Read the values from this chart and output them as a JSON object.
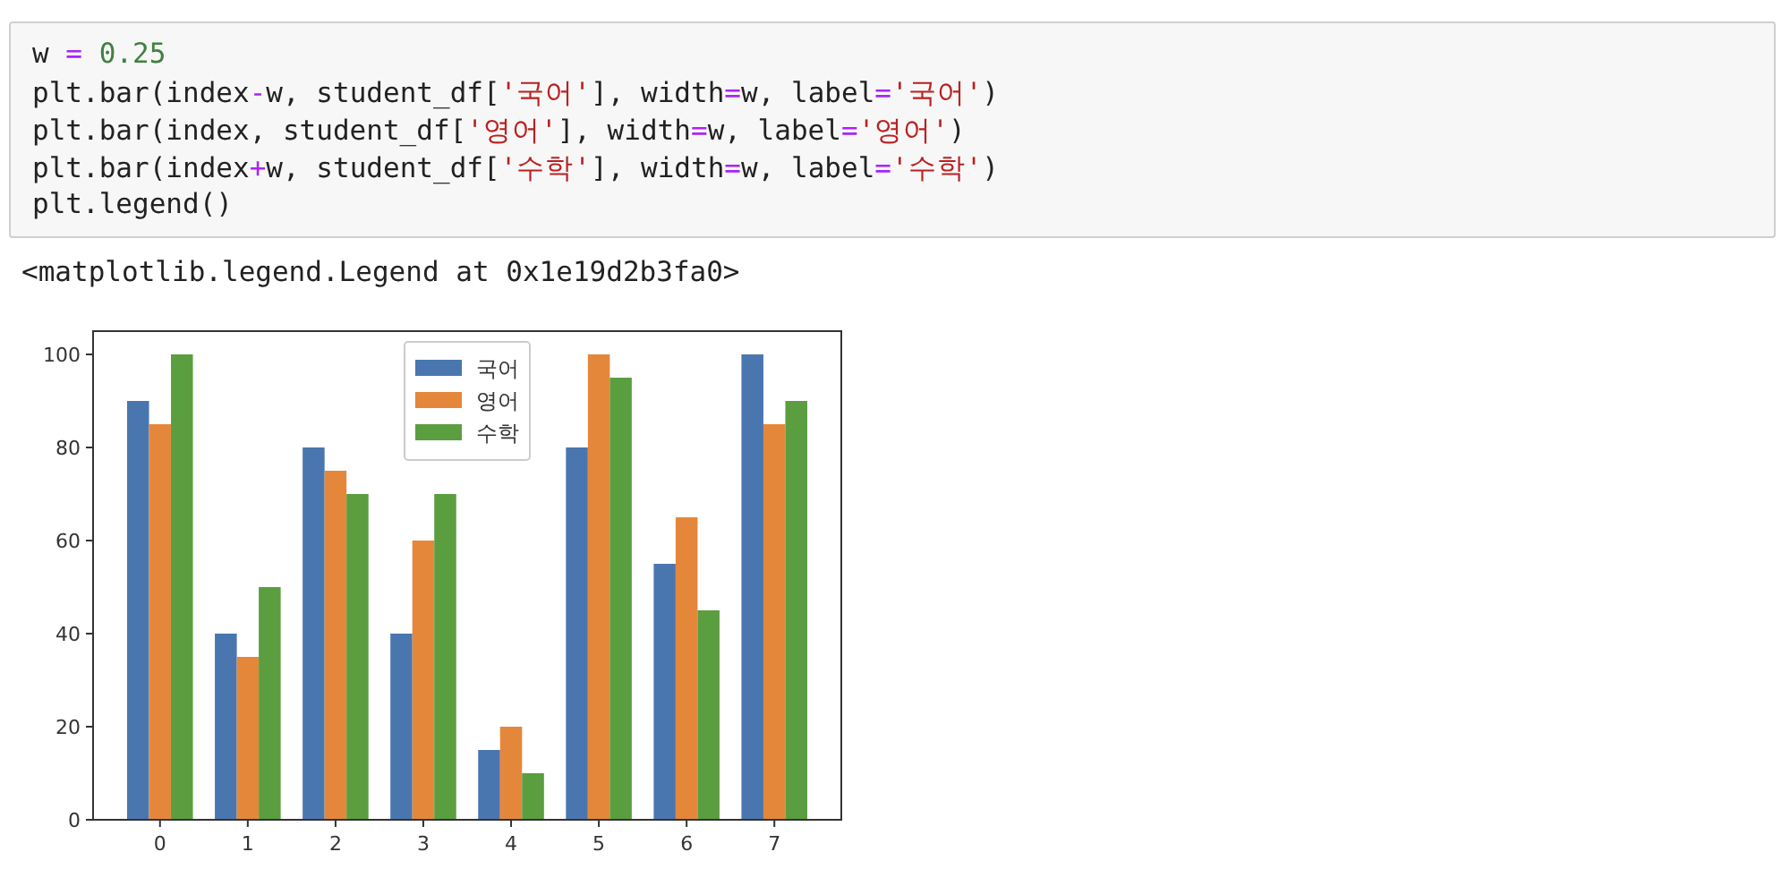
{
  "chart_data": {
    "type": "bar",
    "annotations": [
      "w = 0.25",
      "plt.bar(index-w, student_df['국어'], width=w, label='국어')",
      "plt.bar(index, student_df['영어'], width=w, label='영어')",
      "plt.bar(index+w, student_df['수학'], width=w, label='수학')",
      "plt.legend()",
      "<matplotlib.legend.Legend at 0x1e19d2b3fa0>"
    ],
    "categories": [
      "0",
      "1",
      "2",
      "3",
      "4",
      "5",
      "6",
      "7"
    ],
    "series": [
      {
        "name": "국어",
        "color": "#4a76b0",
        "values": [
          90,
          40,
          80,
          40,
          15,
          80,
          55,
          100
        ]
      },
      {
        "name": "영어",
        "color": "#e5873a",
        "values": [
          85,
          35,
          75,
          60,
          20,
          100,
          65,
          85
        ]
      },
      {
        "name": "수학",
        "color": "#5a9e3f",
        "values": [
          100,
          50,
          70,
          70,
          10,
          95,
          45,
          90
        ]
      }
    ],
    "ylim": [
      0,
      105
    ],
    "yticks": [
      0,
      20,
      40,
      60,
      80,
      100
    ],
    "legend": "top"
  }
}
